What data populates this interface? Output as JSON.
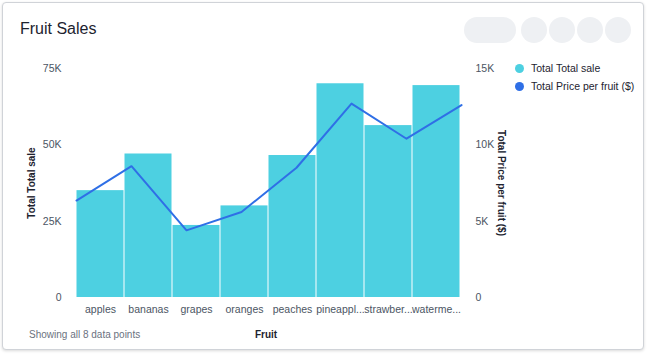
{
  "chart_data": {
    "type": "bar",
    "title": "Fruit Sales",
    "x_label": "Fruit",
    "y_label": "Total Total sale",
    "y2_label": "Total Price per fruit ($)",
    "caption": "Showing all 8 data points",
    "categories": [
      "apples",
      "bananas",
      "grapes",
      "oranges",
      "peaches",
      "pineappl...",
      "strawber...",
      "waterme..."
    ],
    "series": [
      {
        "name": "Total Total sale",
        "type": "bar",
        "color": "#4dd0e1",
        "values": [
          35000,
          47000,
          23600,
          30000,
          46500,
          70000,
          56300,
          69400
        ]
      },
      {
        "name": "Total Price per fruit ($)",
        "type": "line",
        "axis": "y2",
        "color": "#2f6fe6",
        "values": [
          6350,
          8600,
          4400,
          5600,
          8500,
          12700,
          10400,
          12600
        ]
      }
    ],
    "ylim": [
      0,
      75000
    ],
    "yticks": [
      0,
      {
        "value": 25000,
        "label": "25K"
      },
      {
        "value": 50000,
        "label": "50K"
      },
      {
        "value": 75000,
        "label": "75K"
      }
    ],
    "y2lim": [
      0,
      15000
    ],
    "y2ticks": [
      0,
      {
        "value": 5000,
        "label": "5K"
      },
      {
        "value": 10000,
        "label": "10K"
      },
      {
        "value": 15000,
        "label": "15K"
      }
    ],
    "grid": false,
    "legend": "top-right"
  }
}
